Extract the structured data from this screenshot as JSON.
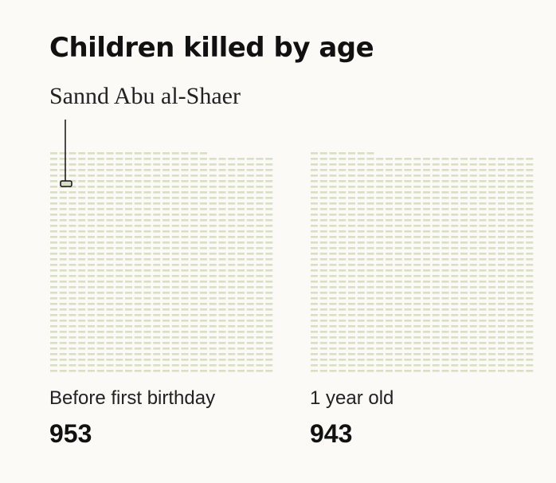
{
  "chart_data": {
    "type": "waffle",
    "title": "Children killed by age",
    "annotation": "Sannd Abu al-Shaer",
    "colors": {
      "mark": "#d9dfc4",
      "highlight_stroke": "#111111",
      "background": "#fbfaf6"
    },
    "panels": [
      {
        "label": "Before first birthday",
        "value": 953,
        "display_value": "953",
        "highlighted_index": 12
      },
      {
        "label": "1 year old",
        "value": 943,
        "display_value": "943"
      }
    ]
  }
}
